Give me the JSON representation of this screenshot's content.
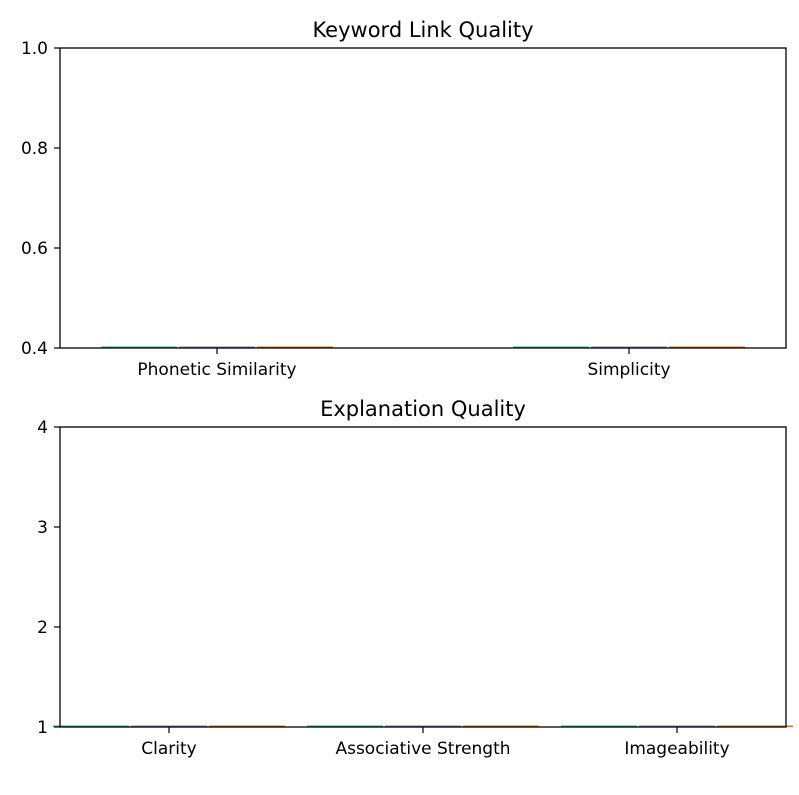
{
  "chart_data": [
    {
      "type": "bar",
      "title": "Keyword Link Quality",
      "xlabel": "",
      "ylabel": "",
      "ylim": [
        0.4,
        1.0
      ],
      "yticks": [
        "0.4",
        "0.6",
        "0.8",
        "1.0"
      ],
      "categories": [
        "Phonetic Similarity",
        "Simplicity"
      ],
      "series": [
        {
          "values": [
            0.4,
            0.4
          ],
          "color": "#1b9e77"
        },
        {
          "values": [
            0.4,
            0.4
          ],
          "color": "#7570b3"
        },
        {
          "values": [
            0.4,
            0.4
          ],
          "color": "#d95f02"
        }
      ],
      "grid": false
    },
    {
      "type": "bar",
      "title": "Explanation Quality",
      "xlabel": "",
      "ylabel": "",
      "ylim": [
        1,
        4
      ],
      "yticks": [
        "1",
        "2",
        "3",
        "4"
      ],
      "categories": [
        "Clarity",
        "Associative Strength",
        "Imageability"
      ],
      "series": [
        {
          "values": [
            1,
            1,
            1
          ],
          "color": "#1b9e77"
        },
        {
          "values": [
            1,
            1,
            1
          ],
          "color": "#7570b3"
        },
        {
          "values": [
            1,
            1,
            1
          ],
          "color": "#d95f02"
        }
      ],
      "grid": false
    }
  ]
}
